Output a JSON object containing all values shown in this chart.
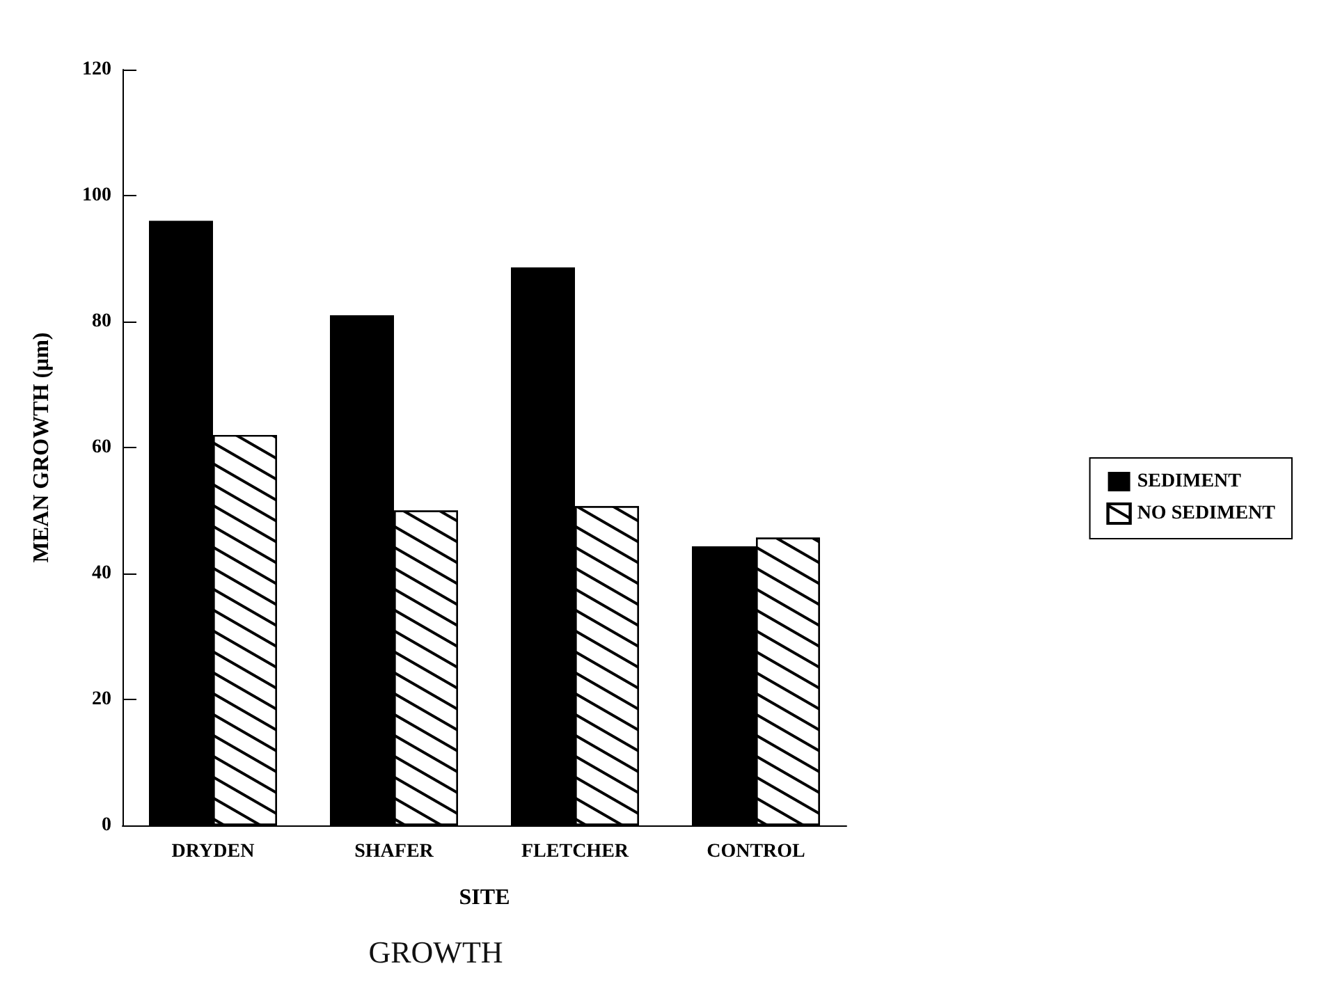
{
  "chart_data": {
    "type": "bar",
    "title": "GROWTH",
    "xlabel": "SITE",
    "ylabel": "MEAN GROWTH (μm)",
    "categories": [
      "DRYDEN",
      "SHAFER",
      "FLETCHER",
      "CONTROL"
    ],
    "series": [
      {
        "name": "SEDIMENT",
        "color": "#000000",
        "values": [
          96,
          81,
          88.6,
          44.3
        ]
      },
      {
        "name": "NO SEDIMENT",
        "color": "#ffffff",
        "values": [
          62,
          50,
          50.7,
          45.7
        ]
      }
    ],
    "ylim": [
      0,
      120
    ],
    "yticks": [
      0,
      20,
      40,
      60,
      80,
      100,
      120
    ],
    "legend": "right"
  }
}
